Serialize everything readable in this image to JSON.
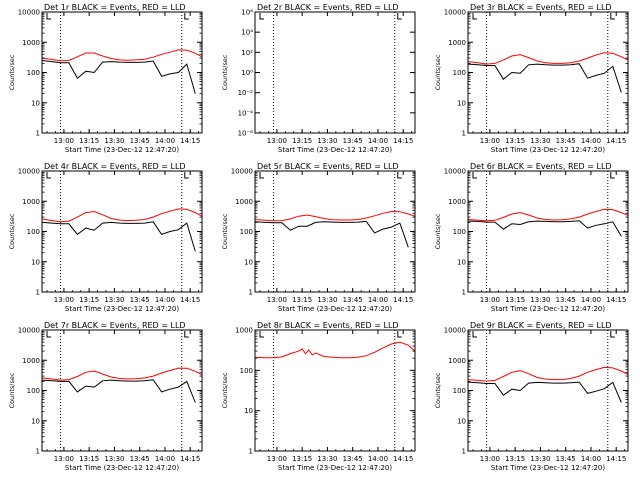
{
  "colors": {
    "events": "#000000",
    "lld": "#ff0000",
    "axis": "#000000",
    "background": "#ffffff"
  },
  "xtick_labels": [
    "13:00",
    "13:15",
    "13:30",
    "13:45",
    "14:00",
    "14:15"
  ],
  "xtick_labels_alt": [
    "13:00",
    "13:15",
    "13:30",
    "13:45",
    "14:00",
    "14:15"
  ],
  "xlabel": "Start Time (23-Dec-12 12:47:20)",
  "ylabel": "Counts/sec",
  "log_ticks": [
    "1",
    "10",
    "100",
    "1000",
    "10000"
  ],
  "det2_ticks": [
    "10⁻⁶",
    "10⁻⁴",
    "10⁻²",
    "10⁰",
    "10²",
    "10⁴",
    "10⁶"
  ],
  "chart_data": [
    {
      "type": "line",
      "title": "Det 1r BLACK = Events, RED = LLD",
      "xlabel": "Start Time (23-Dec-12 12:47:20)",
      "ylabel": "Counts/sec",
      "xlim": [
        "12:47",
        "14:22"
      ],
      "ylim": [
        1,
        10000
      ],
      "yscale": "log",
      "x": [
        "12:47",
        "12:53",
        "12:58",
        "13:03",
        "13:08",
        "13:13",
        "13:18",
        "13:23",
        "13:28",
        "13:33",
        "13:38",
        "13:43",
        "13:48",
        "13:53",
        "13:58",
        "14:03",
        "14:08",
        "14:13",
        "14:18",
        "14:22"
      ],
      "series": [
        {
          "name": "LLD",
          "values": [
            300,
            270,
            245,
            250,
            330,
            440,
            440,
            350,
            290,
            260,
            255,
            260,
            275,
            320,
            400,
            470,
            560,
            550,
            430,
            330
          ]
        },
        {
          "name": "Events",
          "values": [
            250,
            230,
            210,
            210,
            65,
            110,
            100,
            220,
            230,
            220,
            215,
            215,
            220,
            240,
            75,
            90,
            100,
            190,
            20,
            null
          ]
        }
      ],
      "dotted_x": [
        "12:58",
        "14:10"
      ]
    },
    {
      "type": "line",
      "title": "Det 2r BLACK = Events, RED = LLD",
      "xlabel": "Start Time (23-Dec-12 12:47:20)",
      "ylabel": "Counts/sec",
      "xlim": [
        "12:47",
        "14:22"
      ],
      "ylim": [
        1e-06,
        1000000.0
      ],
      "yscale": "log",
      "x": [],
      "series": [],
      "dotted_x": [
        "12:58",
        "14:10"
      ]
    },
    {
      "type": "line",
      "title": "Det 3r BLACK = Events, RED = LLD",
      "xlabel": "Start Time (23-Dec-12 12:47:20)",
      "ylabel": "Counts/sec",
      "xlim": [
        "12:47",
        "14:22"
      ],
      "ylim": [
        1,
        10000
      ],
      "yscale": "log",
      "x": [
        "12:47",
        "12:53",
        "12:58",
        "13:03",
        "13:08",
        "13:13",
        "13:18",
        "13:23",
        "13:28",
        "13:33",
        "13:38",
        "13:43",
        "13:48",
        "13:53",
        "13:58",
        "14:03",
        "14:08",
        "14:13",
        "14:18",
        "14:22"
      ],
      "series": [
        {
          "name": "LLD",
          "values": [
            230,
            210,
            190,
            200,
            260,
            350,
            390,
            310,
            240,
            210,
            200,
            200,
            210,
            240,
            300,
            380,
            450,
            430,
            330,
            260
          ]
        },
        {
          "name": "Events",
          "values": [
            190,
            180,
            170,
            170,
            60,
            100,
            95,
            180,
            190,
            180,
            175,
            175,
            180,
            195,
            65,
            80,
            95,
            160,
            22,
            null
          ]
        }
      ],
      "dotted_x": [
        "12:58",
        "14:10"
      ]
    },
    {
      "type": "line",
      "title": "Det 4r BLACK = Events, RED = LLD",
      "xlabel": "Start Time (23-Dec-12 12:47:20)",
      "ylabel": "Counts/sec",
      "xlim": [
        "12:47",
        "14:22"
      ],
      "ylim": [
        1,
        10000
      ],
      "yscale": "log",
      "x": [
        "12:47",
        "12:53",
        "12:58",
        "13:03",
        "13:08",
        "13:13",
        "13:18",
        "13:23",
        "13:28",
        "13:33",
        "13:38",
        "13:43",
        "13:48",
        "13:53",
        "13:58",
        "14:03",
        "14:08",
        "14:13",
        "14:18",
        "14:22"
      ],
      "series": [
        {
          "name": "LLD",
          "values": [
            260,
            230,
            210,
            220,
            300,
            420,
            460,
            360,
            270,
            240,
            230,
            235,
            250,
            300,
            390,
            470,
            560,
            540,
            420,
            320
          ]
        },
        {
          "name": "Events",
          "values": [
            200,
            190,
            180,
            180,
            80,
            130,
            110,
            190,
            200,
            190,
            185,
            185,
            190,
            210,
            80,
            100,
            115,
            190,
            22,
            null
          ]
        }
      ],
      "dotted_x": [
        "12:58",
        "14:10"
      ]
    },
    {
      "type": "line",
      "title": "Det 5r BLACK = Events, RED = LLD",
      "xlabel": "Start Time (23-Dec-12 12:47:20)",
      "ylabel": "Counts/sec",
      "xlim": [
        "12:47",
        "14:22"
      ],
      "ylim": [
        1,
        10000
      ],
      "yscale": "log",
      "x": [
        "12:47",
        "12:53",
        "12:58",
        "13:03",
        "13:08",
        "13:13",
        "13:18",
        "13:23",
        "13:28",
        "13:33",
        "13:38",
        "13:43",
        "13:48",
        "13:53",
        "13:58",
        "14:03",
        "14:08",
        "14:13",
        "14:18",
        "14:22"
      ],
      "series": [
        {
          "name": "LLD",
          "values": [
            250,
            235,
            225,
            230,
            260,
            320,
            350,
            310,
            270,
            245,
            240,
            240,
            250,
            280,
            330,
            400,
            460,
            450,
            380,
            320
          ]
        },
        {
          "name": "Events",
          "values": [
            210,
            200,
            195,
            195,
            110,
            150,
            150,
            200,
            210,
            205,
            200,
            200,
            205,
            215,
            90,
            120,
            140,
            190,
            30,
            null
          ]
        }
      ],
      "dotted_x": [
        "12:58",
        "14:10"
      ]
    },
    {
      "type": "line",
      "title": "Det 6r BLACK = Events, RED = LLD",
      "xlabel": "Start Time (23-Dec-12 12:47:20)",
      "ylabel": "Counts/sec",
      "xlim": [
        "12:47",
        "14:22"
      ],
      "ylim": [
        1,
        10000
      ],
      "yscale": "log",
      "x": [
        "12:47",
        "12:53",
        "12:58",
        "13:03",
        "13:08",
        "13:13",
        "13:18",
        "13:23",
        "13:28",
        "13:33",
        "13:38",
        "13:43",
        "13:48",
        "13:53",
        "13:58",
        "14:03",
        "14:08",
        "14:13",
        "14:18",
        "14:22"
      ],
      "series": [
        {
          "name": "LLD",
          "values": [
            250,
            235,
            225,
            235,
            290,
            380,
            420,
            350,
            280,
            250,
            240,
            245,
            260,
            300,
            380,
            460,
            540,
            530,
            420,
            340
          ]
        },
        {
          "name": "Events",
          "values": [
            220,
            215,
            205,
            205,
            120,
            180,
            170,
            210,
            220,
            215,
            210,
            210,
            215,
            225,
            130,
            160,
            180,
            210,
            70,
            null
          ]
        }
      ],
      "dotted_x": [
        "12:58",
        "14:10"
      ]
    },
    {
      "type": "line",
      "title": "Det 7r BLACK = Events, RED = LLD",
      "xlabel": "Start Time (23-Dec-12 12:47:20)",
      "ylabel": "Counts/sec",
      "xlim": [
        "12:47",
        "14:22"
      ],
      "ylim": [
        1,
        10000
      ],
      "yscale": "log",
      "x": [
        "12:47",
        "12:53",
        "12:58",
        "13:03",
        "13:08",
        "13:13",
        "13:18",
        "13:23",
        "13:28",
        "13:33",
        "13:38",
        "13:43",
        "13:48",
        "13:53",
        "13:58",
        "14:03",
        "14:08",
        "14:13",
        "14:18",
        "14:22"
      ],
      "series": [
        {
          "name": "LLD",
          "values": [
            260,
            240,
            220,
            230,
            290,
            400,
            440,
            350,
            280,
            250,
            240,
            245,
            260,
            300,
            380,
            460,
            550,
            540,
            430,
            330
          ]
        },
        {
          "name": "Events",
          "values": [
            220,
            210,
            200,
            200,
            90,
            140,
            130,
            210,
            220,
            210,
            205,
            205,
            210,
            225,
            90,
            110,
            130,
            200,
            40,
            null
          ]
        }
      ],
      "dotted_x": [
        "12:58",
        "14:10"
      ]
    },
    {
      "type": "line",
      "title": "Det 8r BLACK = Events, RED = LLD",
      "xlabel": "Start Time (23-Dec-12 12:47:20)",
      "ylabel": "Counts/sec",
      "xlim": [
        "12:47",
        "14:22"
      ],
      "ylim": [
        1,
        1000
      ],
      "yscale": "log",
      "x": [
        "12:47",
        "12:53",
        "12:58",
        "13:03",
        "13:08",
        "13:13",
        "13:15",
        "13:17",
        "13:19",
        "13:21",
        "13:23",
        "13:28",
        "13:33",
        "13:38",
        "13:43",
        "13:48",
        "13:53",
        "13:58",
        "14:03",
        "14:08",
        "14:13",
        "14:18",
        "14:22"
      ],
      "series": [
        {
          "name": "LLD",
          "values": [
            210,
            205,
            205,
            215,
            260,
            300,
            340,
            260,
            320,
            240,
            270,
            220,
            210,
            205,
            205,
            210,
            230,
            280,
            360,
            450,
            500,
            420,
            300
          ]
        }
      ],
      "dotted_x": [
        "12:58",
        "14:10"
      ]
    },
    {
      "type": "line",
      "title": "Det 9r BLACK = Events, RED = LLD",
      "xlabel": "Start Time (23-Dec-12 12:47:20)",
      "ylabel": "Counts/sec",
      "xlim": [
        "12:47",
        "14:22"
      ],
      "ylim": [
        1,
        10000
      ],
      "yscale": "log",
      "x": [
        "12:47",
        "12:53",
        "12:58",
        "13:03",
        "13:08",
        "13:13",
        "13:18",
        "13:23",
        "13:28",
        "13:33",
        "13:38",
        "13:43",
        "13:48",
        "13:53",
        "13:58",
        "14:03",
        "14:08",
        "14:13",
        "14:18",
        "14:22"
      ],
      "series": [
        {
          "name": "LLD",
          "values": [
            230,
            215,
            205,
            215,
            290,
            400,
            450,
            360,
            270,
            240,
            230,
            230,
            250,
            300,
            400,
            490,
            580,
            560,
            440,
            340
          ]
        },
        {
          "name": "Events",
          "values": [
            190,
            180,
            170,
            170,
            70,
            110,
            100,
            175,
            185,
            180,
            175,
            175,
            180,
            190,
            80,
            95,
            115,
            185,
            40,
            null
          ]
        }
      ],
      "dotted_x": [
        "12:58",
        "14:10"
      ]
    }
  ]
}
